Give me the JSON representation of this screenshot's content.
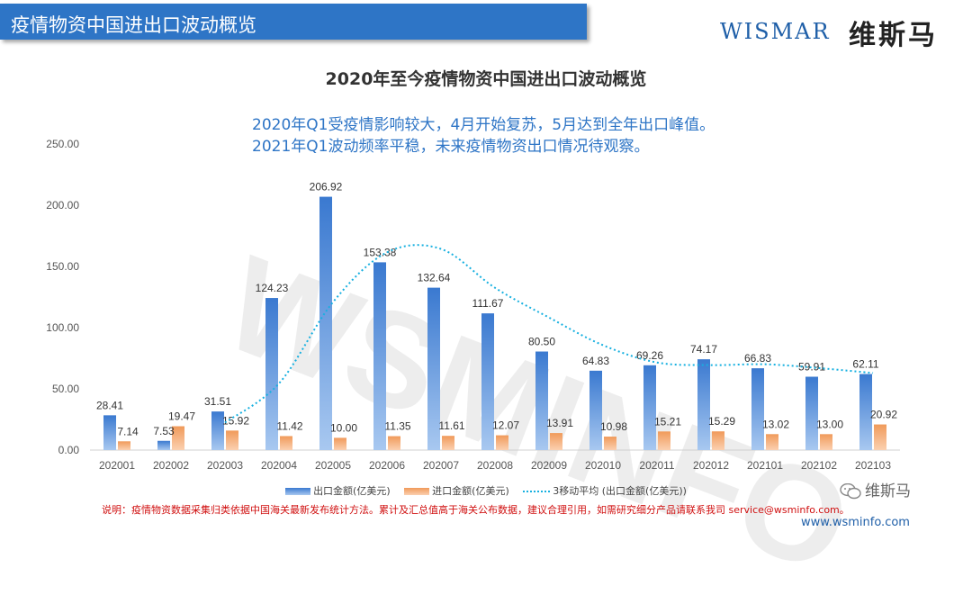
{
  "header": {
    "title": "疫情物资中国进出口波动概览"
  },
  "logo": {
    "en": "WISMAR",
    "cn": "维斯马"
  },
  "chart_data": {
    "type": "bar",
    "title": "2020年至今疫情物资中国进出口波动概览",
    "notes": [
      "2020年Q1受疫情影响较大，4月开始复苏，5月达到全年出口峰值。",
      "2021年Q1波动频率平稳，未来疫情物资出口情况待观察。"
    ],
    "categories": [
      "202001",
      "202002",
      "202003",
      "202004",
      "202005",
      "202006",
      "202007",
      "202008",
      "202009",
      "202010",
      "202011",
      "202012",
      "202101",
      "202102",
      "202103"
    ],
    "series": [
      {
        "name": "出口金额(亿美元)",
        "type": "bar",
        "values": [
          28.41,
          7.53,
          31.51,
          124.23,
          206.92,
          153.38,
          132.64,
          111.67,
          80.5,
          64.83,
          69.26,
          74.17,
          66.83,
          59.91,
          62.11
        ],
        "color": "#3a79d0"
      },
      {
        "name": "进口金额(亿美元)",
        "type": "bar",
        "values": [
          7.14,
          19.47,
          15.92,
          11.42,
          10.0,
          11.35,
          11.61,
          12.07,
          13.91,
          10.98,
          15.21,
          15.29,
          13.02,
          13.0,
          20.92
        ],
        "color": "#f09a5a"
      },
      {
        "name": "3移动平均 (出口金额(亿美元))",
        "type": "line",
        "style": "dotted",
        "values": [
          null,
          null,
          22.48,
          54.42,
          120.89,
          161.51,
          164.31,
          132.56,
          108.27,
          85.67,
          71.53,
          69.42,
          70.09,
          66.97,
          62.95
        ],
        "color": "#17b0e0"
      }
    ],
    "ylim": [
      0,
      250
    ],
    "yticks": [
      "0.00",
      "50.00",
      "100.00",
      "150.00",
      "200.00",
      "250.00"
    ],
    "grid": false,
    "legend": "bottom"
  },
  "legend": {
    "export": "出口金额(亿美元)",
    "import": "进口金额(亿美元)",
    "avg": "3移动平均 (出口金额(亿美元))"
  },
  "watermark": "WSMINFO",
  "footer": {
    "disclaimer": "说明：疫情物资数据采集归类依据中国海关最新发布统计方法。累计及汇总值高于海关公布数据，建议合理引用，如需研究细分产品请联系我司 service@wsminfo.com。",
    "website": "www.wsminfo.com",
    "wechat": "维斯马"
  }
}
